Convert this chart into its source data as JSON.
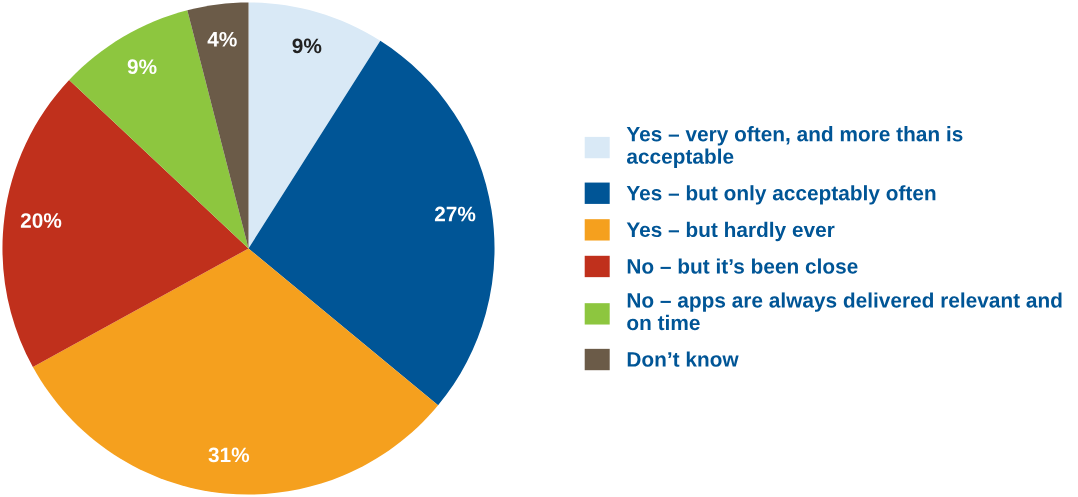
{
  "chart_data": {
    "type": "pie",
    "categories": [
      "Yes – very often, and more than is acceptable",
      "Yes – but only acceptably often",
      "Yes – but hardly ever",
      "No – but it’s been close",
      "No – apps are always delivered relevant and on time",
      "Don’t know"
    ],
    "values": [
      9,
      27,
      31,
      20,
      9,
      4
    ],
    "colors": [
      "#d9e9f6",
      "#005596",
      "#f5a01e",
      "#c0301c",
      "#8dc63f",
      "#6b5b48"
    ],
    "value_labels": [
      "9%",
      "27%",
      "31%",
      "20%",
      "9%",
      "4%"
    ],
    "legend": "right"
  }
}
